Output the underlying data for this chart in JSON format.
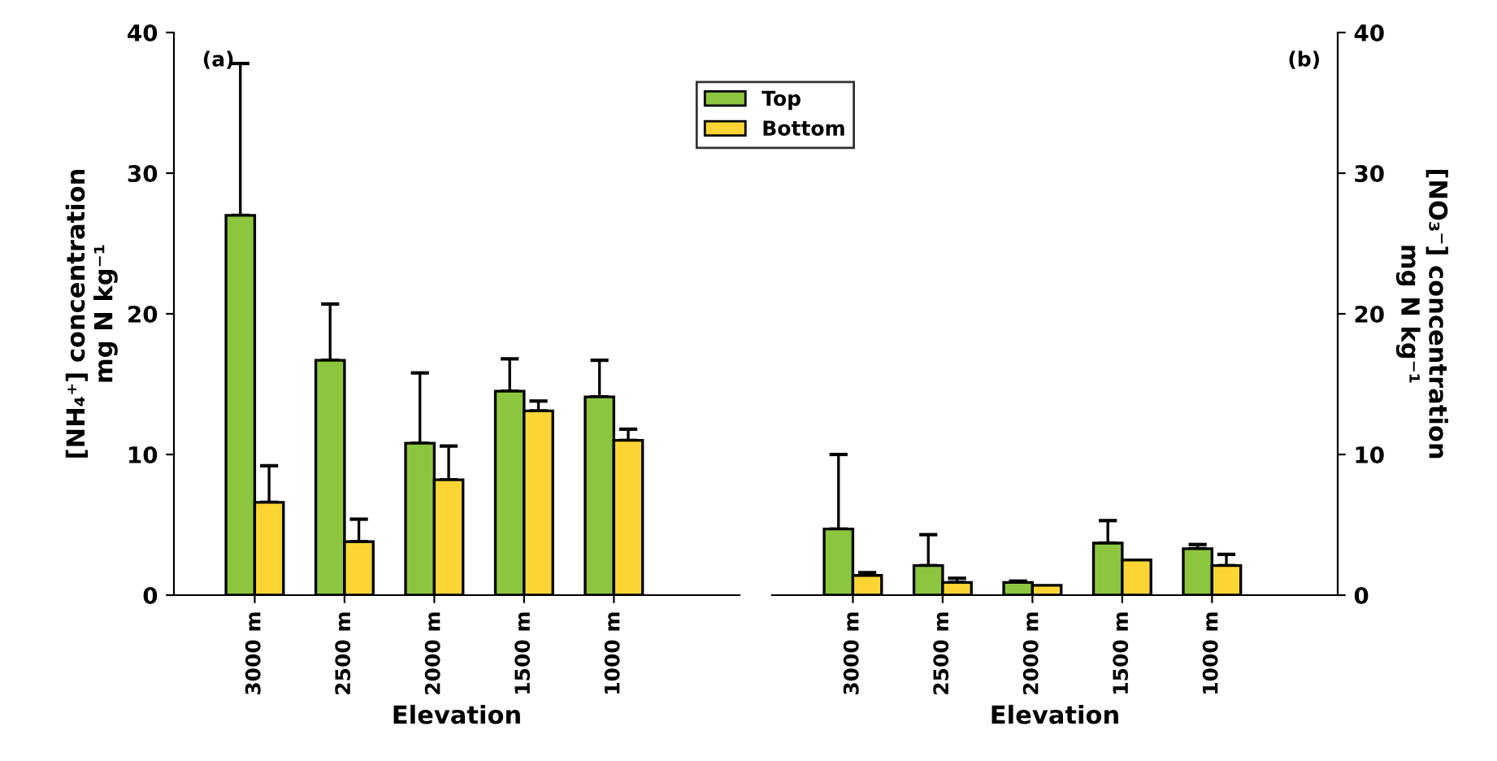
{
  "chart_data": [
    {
      "type": "bar",
      "xlabel": "Elevation",
      "ylabel": "[NH₄⁺] concentration\nmg N kg⁻¹",
      "categories": [
        "3000 m",
        "2500 m",
        "2000 m",
        "1500 m",
        "1000 m"
      ],
      "series": [
        {
          "name": "Top",
          "color": "#8cc63e",
          "values": [
            27.0,
            16.7,
            10.8,
            14.5,
            14.1
          ],
          "errors": [
            [
              27.0,
              37.8
            ],
            [
              16.7,
              20.7
            ],
            [
              10.8,
              15.8
            ],
            [
              14.5,
              16.8
            ],
            [
              14.1,
              16.7
            ]
          ]
        },
        {
          "name": "Bottom",
          "color": "#fcd535",
          "values": [
            6.6,
            3.8,
            8.2,
            13.1,
            11.0
          ],
          "errors": [
            [
              6.6,
              9.2
            ],
            [
              3.8,
              5.4
            ],
            [
              8.2,
              10.6
            ],
            [
              13.1,
              13.8
            ],
            [
              11.0,
              11.8
            ]
          ]
        }
      ],
      "ylim": [
        0,
        40
      ],
      "yticks": [
        0,
        10,
        20,
        30,
        40
      ],
      "legend": "top right",
      "grid": false,
      "annotations": [
        "(a)"
      ]
    },
    {
      "type": "bar",
      "xlabel": "Elevation",
      "ylabel": "[NO₃⁻] concentration\nmg N kg⁻¹",
      "categories": [
        "3000 m",
        "2500 m",
        "2000 m",
        "1500 m",
        "1000 m"
      ],
      "series": [
        {
          "color": "#8cc63e",
          "values": [
            4.7,
            2.1,
            0.9,
            3.7,
            3.3
          ],
          "errors": [
            [
              4.7,
              10.0
            ],
            [
              2.1,
              4.3
            ],
            [
              0.9,
              1.0
            ],
            [
              3.7,
              5.3
            ],
            [
              3.3,
              3.6
            ]
          ]
        },
        {
          "color": "#fcd535",
          "values": [
            1.4,
            0.9,
            0.7,
            2.5,
            2.1
          ],
          "errors": [
            [
              1.4,
              1.6
            ],
            [
              0.9,
              1.2
            ],
            null,
            null,
            [
              2.1,
              2.9
            ]
          ]
        }
      ],
      "ylim": [
        0,
        40
      ],
      "yticks": [
        0,
        10,
        20,
        30,
        40
      ],
      "grid": false,
      "annotations": [
        "(b)"
      ]
    }
  ]
}
